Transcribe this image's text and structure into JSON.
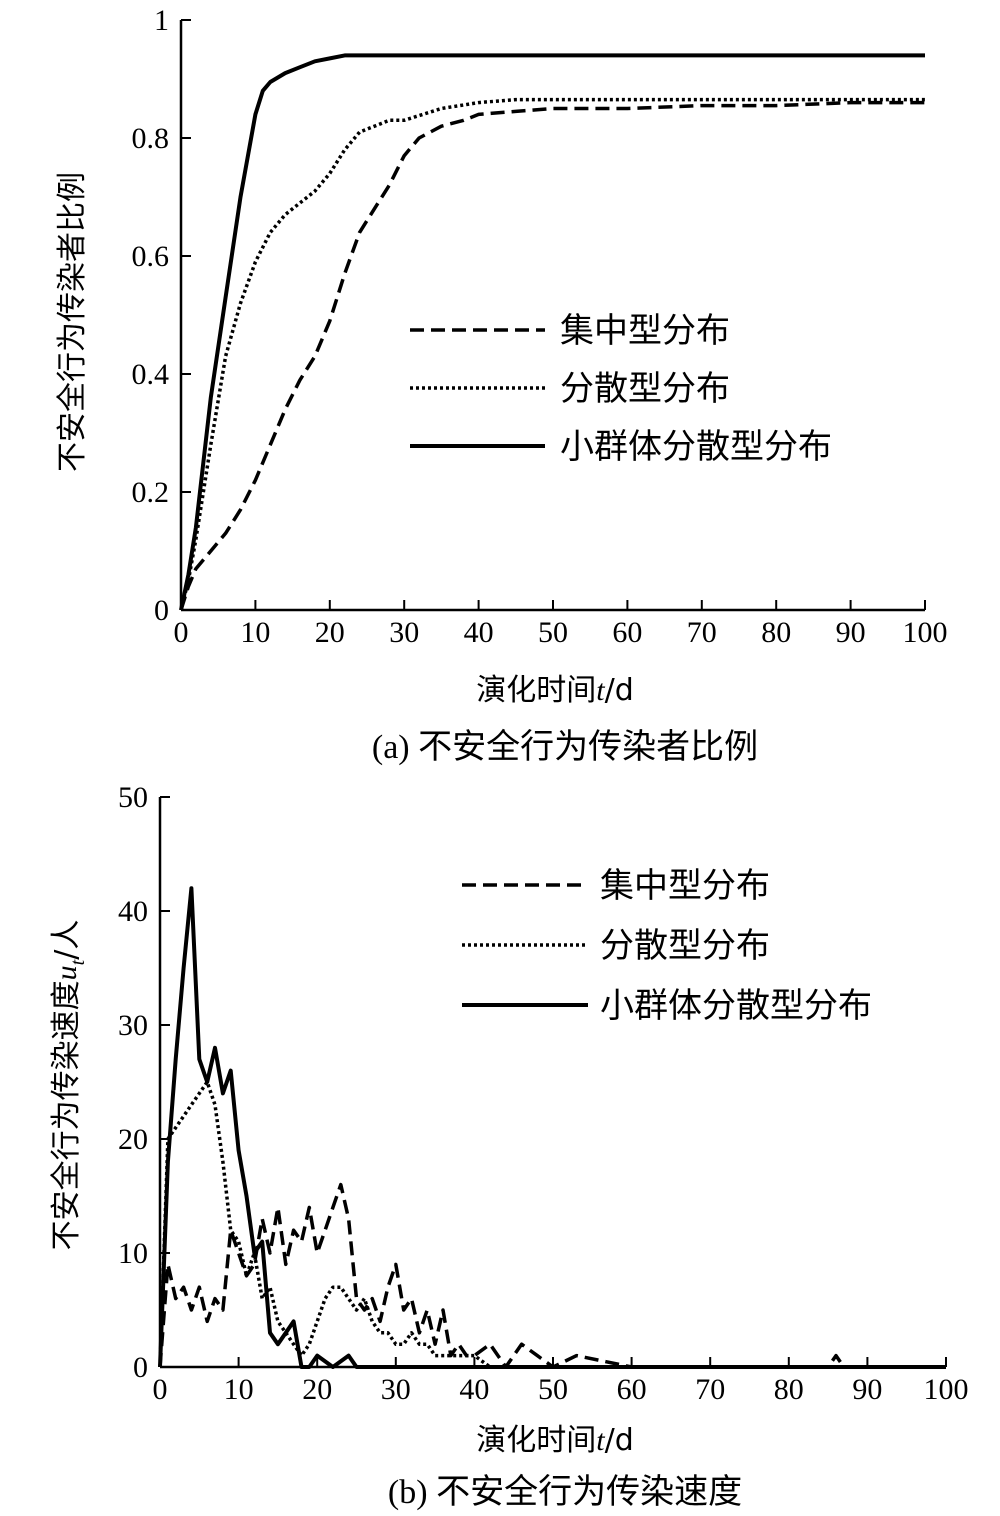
{
  "chart_data": [
    {
      "type": "line",
      "caption": "(a) 不安全行为传染者比例",
      "xlabel_prefix": "演化时间",
      "xlabel_var": "t",
      "xlabel_suffix": "/d",
      "ylabel": "不安全行为传染者比例",
      "xlim": [
        0,
        100
      ],
      "ylim": [
        0,
        1
      ],
      "xticks": [
        0,
        10,
        20,
        30,
        40,
        50,
        60,
        70,
        80,
        90,
        100
      ],
      "yticks": [
        0,
        0.2,
        0.4,
        0.6,
        0.8,
        1
      ],
      "ytick_labels": [
        "0",
        "0.2",
        "0.4",
        "0.6",
        "0.8",
        "1"
      ],
      "legend_position": "center-right",
      "series": [
        {
          "name": "集中型分布",
          "style": "dashed",
          "x": [
            0,
            1,
            2,
            4,
            6,
            8,
            10,
            12,
            14,
            16,
            18,
            20,
            22,
            24,
            26,
            28,
            30,
            32,
            35,
            38,
            40,
            45,
            50,
            60,
            70,
            80,
            90,
            100
          ],
          "y": [
            0,
            0.04,
            0.07,
            0.1,
            0.13,
            0.17,
            0.22,
            0.28,
            0.34,
            0.39,
            0.43,
            0.49,
            0.57,
            0.64,
            0.68,
            0.72,
            0.77,
            0.8,
            0.82,
            0.83,
            0.84,
            0.845,
            0.85,
            0.85,
            0.855,
            0.855,
            0.86,
            0.86
          ]
        },
        {
          "name": "分散型分布",
          "style": "dotted",
          "x": [
            0,
            1,
            2,
            4,
            6,
            8,
            10,
            12,
            14,
            16,
            18,
            20,
            22,
            24,
            26,
            28,
            30,
            35,
            40,
            45,
            50,
            60,
            70,
            80,
            90,
            100
          ],
          "y": [
            0,
            0.05,
            0.12,
            0.28,
            0.43,
            0.52,
            0.59,
            0.64,
            0.67,
            0.69,
            0.71,
            0.74,
            0.78,
            0.81,
            0.82,
            0.83,
            0.83,
            0.85,
            0.86,
            0.865,
            0.865,
            0.865,
            0.865,
            0.865,
            0.865,
            0.865
          ]
        },
        {
          "name": "小群体分散型分布",
          "style": "solid",
          "x": [
            0,
            1,
            2,
            4,
            6,
            8,
            10,
            11,
            12,
            14,
            16,
            18,
            20,
            22,
            24,
            30,
            40,
            50,
            60,
            70,
            80,
            90,
            100
          ],
          "y": [
            0,
            0.06,
            0.14,
            0.36,
            0.53,
            0.7,
            0.84,
            0.88,
            0.895,
            0.91,
            0.92,
            0.93,
            0.935,
            0.94,
            0.94,
            0.94,
            0.94,
            0.94,
            0.94,
            0.94,
            0.94,
            0.94,
            0.94
          ]
        }
      ]
    },
    {
      "type": "line",
      "caption": "(b) 不安全行为传染速度",
      "xlabel_prefix": "演化时间",
      "xlabel_var": "t",
      "xlabel_suffix": "/d",
      "ylabel_prefix": "不安全行为传染速度",
      "ylabel_var": "u",
      "ylabel_sub": "t",
      "ylabel_suffix": "/人",
      "xlim": [
        0,
        100
      ],
      "ylim": [
        0,
        50
      ],
      "xticks": [
        0,
        10,
        20,
        30,
        40,
        50,
        60,
        70,
        80,
        90,
        100
      ],
      "yticks": [
        0,
        10,
        20,
        30,
        40,
        50
      ],
      "ytick_labels": [
        "0",
        "10",
        "20",
        "30",
        "40",
        "50"
      ],
      "legend_position": "top-right",
      "series": [
        {
          "name": "集中型分布",
          "style": "dashed",
          "x": [
            0,
            1,
            2,
            3,
            4,
            5,
            6,
            7,
            8,
            9,
            10,
            11,
            12,
            13,
            14,
            15,
            16,
            17,
            18,
            19,
            20,
            21,
            22,
            23,
            24,
            25,
            26,
            27,
            28,
            29,
            30,
            31,
            32,
            33,
            34,
            35,
            36,
            37,
            38,
            39,
            40,
            42,
            44,
            46,
            48,
            50,
            53,
            60,
            70,
            80,
            85,
            86,
            87,
            90,
            100
          ],
          "y": [
            0,
            9,
            6,
            7,
            5,
            7,
            4,
            6,
            5,
            12,
            10,
            8,
            9,
            13,
            10,
            14,
            9,
            12,
            11,
            14,
            10,
            12,
            14,
            16,
            13,
            6,
            5,
            6,
            4,
            7,
            9,
            5,
            6,
            3,
            5,
            2,
            5,
            1,
            2,
            1,
            1,
            2,
            0,
            2,
            1,
            0,
            1,
            0,
            0,
            0,
            0,
            1,
            0,
            0,
            0
          ]
        },
        {
          "name": "分散型分布",
          "style": "dotted",
          "x": [
            0,
            1,
            2,
            3,
            4,
            5,
            6,
            7,
            8,
            9,
            10,
            11,
            12,
            13,
            14,
            15,
            16,
            17,
            18,
            19,
            20,
            21,
            22,
            23,
            24,
            25,
            26,
            27,
            28,
            29,
            30,
            31,
            32,
            33,
            34,
            35,
            36,
            38,
            40,
            42,
            45,
            50,
            60,
            70,
            80,
            90,
            100
          ],
          "y": [
            0,
            20,
            21,
            22,
            23,
            24,
            25,
            23,
            18,
            12,
            11,
            8,
            10,
            6,
            7,
            4,
            3,
            2,
            1,
            2,
            4,
            6,
            7,
            7,
            6,
            5,
            6,
            4,
            3,
            3,
            2,
            2,
            3,
            2,
            2,
            1,
            1,
            1,
            1,
            0,
            0,
            0,
            0,
            0,
            0,
            0,
            0
          ]
        },
        {
          "name": "小群体分散型分布",
          "style": "solid",
          "x": [
            0,
            1,
            2,
            3,
            4,
            5,
            6,
            7,
            8,
            9,
            10,
            11,
            12,
            13,
            14,
            15,
            16,
            17,
            18,
            19,
            20,
            22,
            24,
            25,
            26,
            30,
            40,
            50,
            60,
            70,
            80,
            90,
            100
          ],
          "y": [
            0,
            18,
            27,
            35,
            42,
            27,
            25,
            28,
            24,
            26,
            19,
            15,
            10,
            11,
            3,
            2,
            3,
            4,
            0,
            0,
            1,
            0,
            1,
            0,
            0,
            0,
            0,
            0,
            0,
            0,
            0,
            0,
            0
          ]
        }
      ]
    }
  ]
}
